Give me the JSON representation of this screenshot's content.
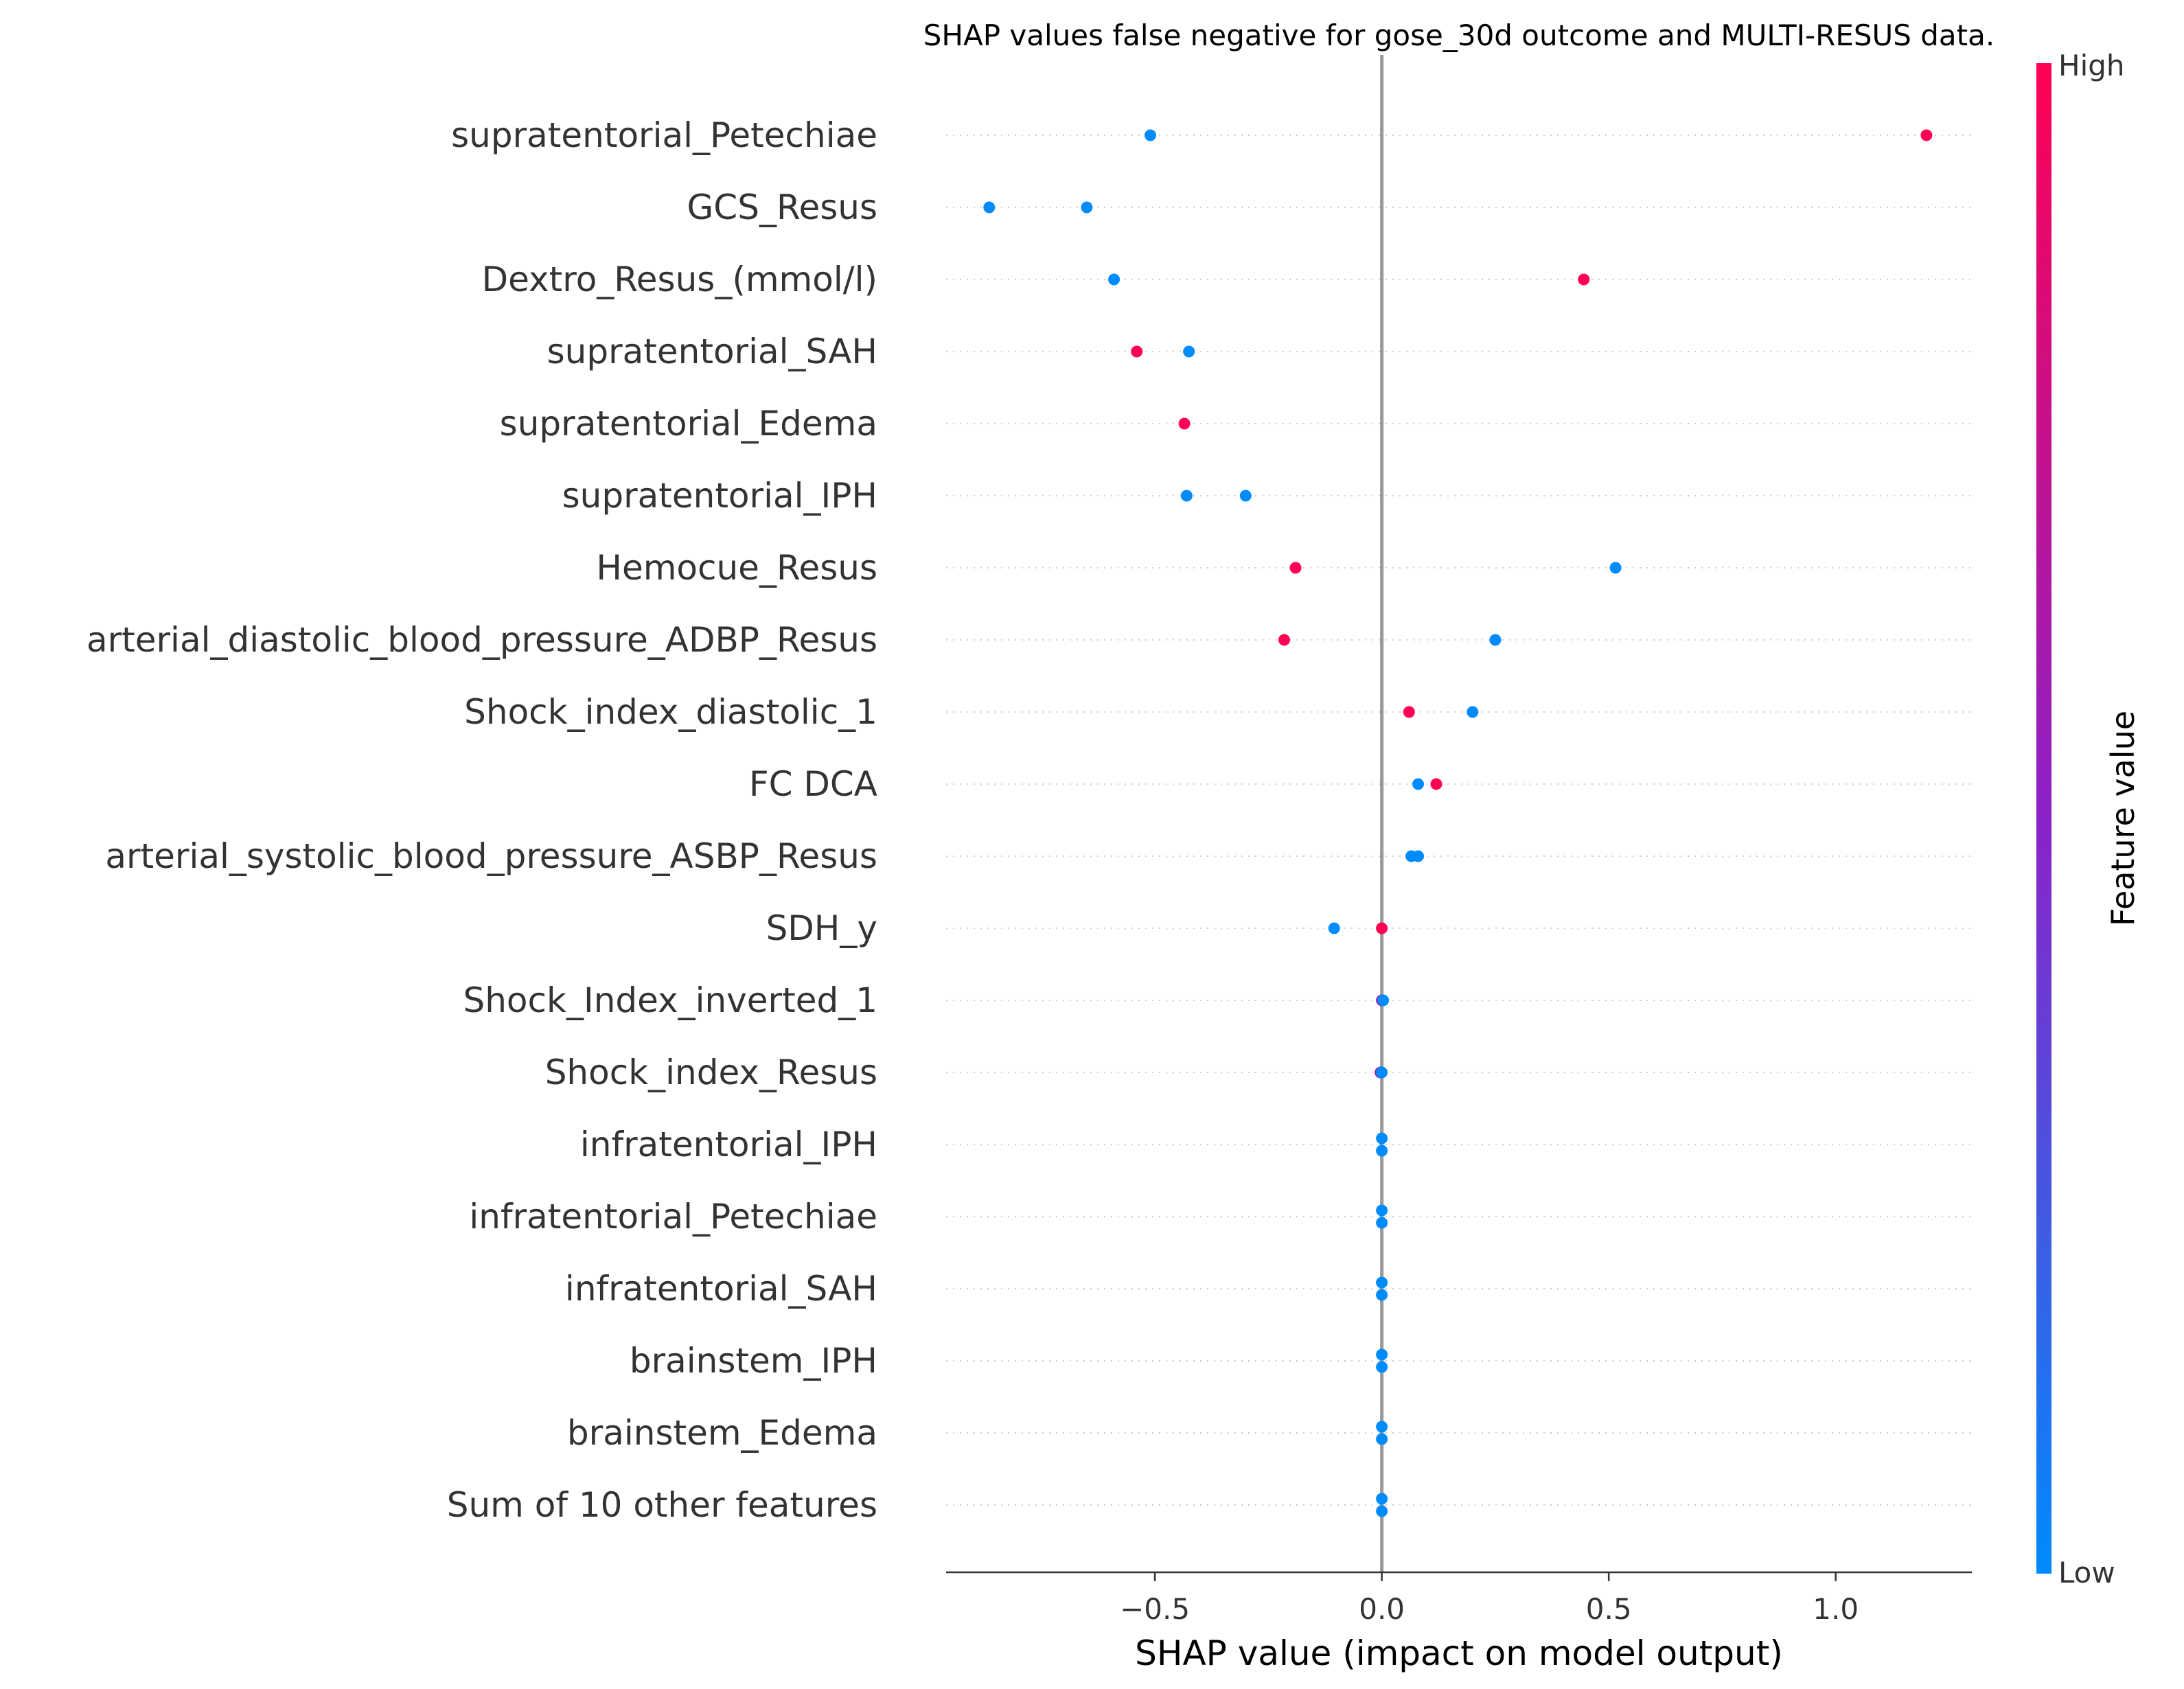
{
  "chart_data": {
    "type": "scatter",
    "title": "SHAP values false negative for gose_30d outcome and MULTI-RESUS data.",
    "xlabel": "SHAP value (impact on model output)",
    "ylabel": "",
    "xlim": [
      -0.96,
      1.3
    ],
    "xticks": [
      -0.5,
      0.0,
      0.5,
      1.0
    ],
    "xtick_labels": [
      "−0.5",
      "0.0",
      "0.5",
      "1.0"
    ],
    "grid": false,
    "colorbar": {
      "label": "Feature value",
      "high_label": "High",
      "low_label": "Low",
      "low_color": "#008bfb",
      "high_color": "#ff0052"
    },
    "features": [
      {
        "name": "supratentorial_Petechiae",
        "points": [
          {
            "x": -0.51,
            "v": 0
          },
          {
            "x": 1.2,
            "v": 1
          }
        ]
      },
      {
        "name": "GCS_Resus",
        "points": [
          {
            "x": -0.865,
            "v": 0
          },
          {
            "x": -0.65,
            "v": 0
          }
        ]
      },
      {
        "name": "Dextro_Resus_(mmol/l)",
        "points": [
          {
            "x": -0.59,
            "v": 0
          },
          {
            "x": 0.445,
            "v": 1
          }
        ]
      },
      {
        "name": "supratentorial_SAH",
        "points": [
          {
            "x": -0.54,
            "v": 1
          },
          {
            "x": -0.425,
            "v": 0
          }
        ]
      },
      {
        "name": "supratentorial_Edema",
        "points": [
          {
            "x": -0.435,
            "v": 1
          }
        ]
      },
      {
        "name": "supratentorial_IPH",
        "points": [
          {
            "x": -0.43,
            "v": 0
          },
          {
            "x": -0.3,
            "v": 0
          }
        ]
      },
      {
        "name": "Hemocue_Resus",
        "points": [
          {
            "x": -0.19,
            "v": 1
          },
          {
            "x": 0.515,
            "v": 0
          }
        ]
      },
      {
        "name": "arterial_diastolic_blood_pressure_ADBP_Resus",
        "points": [
          {
            "x": -0.215,
            "v": 1
          },
          {
            "x": 0.25,
            "v": 0
          }
        ]
      },
      {
        "name": "Shock_index_diastolic_1",
        "points": [
          {
            "x": 0.06,
            "v": 1
          },
          {
            "x": 0.2,
            "v": 0
          }
        ]
      },
      {
        "name": "FC  DCA",
        "points": [
          {
            "x": 0.08,
            "v": 0
          },
          {
            "x": 0.12,
            "v": 1
          }
        ]
      },
      {
        "name": "arterial_systolic_blood_pressure_ASBP_Resus",
        "points": [
          {
            "x": 0.065,
            "v": 0
          },
          {
            "x": 0.08,
            "v": 0
          }
        ]
      },
      {
        "name": "SDH_y",
        "points": [
          {
            "x": -0.105,
            "v": 0
          },
          {
            "x": 0.0,
            "v": 1
          }
        ]
      },
      {
        "name": "Shock_Index_inverted_1",
        "points": [
          {
            "x": 0.0,
            "v": 0.6
          },
          {
            "x": 0.003,
            "v": 0
          }
        ]
      },
      {
        "name": "Shock_index_Resus",
        "points": [
          {
            "x": -0.003,
            "v": 0.6
          },
          {
            "x": 0.0,
            "v": 0
          }
        ]
      },
      {
        "name": "infratentorial_IPH",
        "points": [
          {
            "x": 0.0,
            "v": 0,
            "dy": -1
          },
          {
            "x": 0.0,
            "v": 0,
            "dy": 1
          }
        ]
      },
      {
        "name": "infratentorial_Petechiae",
        "points": [
          {
            "x": 0.0,
            "v": 0,
            "dy": -1
          },
          {
            "x": 0.0,
            "v": 0,
            "dy": 1
          }
        ]
      },
      {
        "name": "infratentorial_SAH",
        "points": [
          {
            "x": 0.0,
            "v": 0,
            "dy": -1
          },
          {
            "x": 0.0,
            "v": 0,
            "dy": 1
          }
        ]
      },
      {
        "name": "brainstem_IPH",
        "points": [
          {
            "x": 0.0,
            "v": 0,
            "dy": -1
          },
          {
            "x": 0.0,
            "v": 0,
            "dy": 1
          }
        ]
      },
      {
        "name": "brainstem_Edema",
        "points": [
          {
            "x": 0.0,
            "v": 0,
            "dy": -1
          },
          {
            "x": 0.0,
            "v": 0,
            "dy": 1
          }
        ]
      },
      {
        "name": "Sum of 10 other features",
        "points": [
          {
            "x": 0.0,
            "v": 0,
            "dy": -1
          },
          {
            "x": 0.0,
            "v": 0,
            "dy": 1
          }
        ]
      }
    ]
  }
}
